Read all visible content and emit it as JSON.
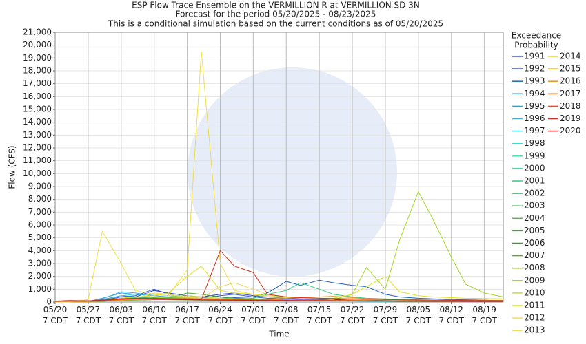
{
  "chart_data": {
    "type": "line",
    "title": "ESP Flow Trace Ensemble on the VERMILLION R at VERMILLION SD 3N",
    "subtitle": [
      "Forecast for the period 05/20/2025 - 08/23/2025",
      "This is a conditional simulation based on the current conditions as of 05/20/2025"
    ],
    "xlabel": "Time",
    "ylabel": "Flow (CFS)",
    "legend_title": [
      "Exceedance",
      "Probability"
    ],
    "legend": "right",
    "grid": true,
    "x": [
      "05/20",
      "05/23",
      "05/27",
      "05/30",
      "06/03",
      "06/06",
      "06/10",
      "06/13",
      "06/17",
      "06/20",
      "06/24",
      "06/27",
      "07/01",
      "07/04",
      "07/08",
      "07/11",
      "07/15",
      "07/18",
      "07/22",
      "07/25",
      "07/29",
      "08/01",
      "08/05",
      "08/08",
      "08/12",
      "08/15",
      "08/19",
      "08/23"
    ],
    "xlim": [
      "05/20",
      "08/23"
    ],
    "xticks": [
      {
        "value": "05/20",
        "label": "05/20 7 CDT"
      },
      {
        "value": "05/27",
        "label": "05/27 7 CDT"
      },
      {
        "value": "06/03",
        "label": "06/03 7 CDT"
      },
      {
        "value": "06/10",
        "label": "06/10 7 CDT"
      },
      {
        "value": "06/17",
        "label": "06/17 7 CDT"
      },
      {
        "value": "06/24",
        "label": "06/24 7 CDT"
      },
      {
        "value": "07/01",
        "label": "07/01 7 CDT"
      },
      {
        "value": "07/08",
        "label": "07/08 7 CDT"
      },
      {
        "value": "07/15",
        "label": "07/15 7 CDT"
      },
      {
        "value": "07/22",
        "label": "07/22 7 CDT"
      },
      {
        "value": "07/29",
        "label": "07/29 7 CDT"
      },
      {
        "value": "08/05",
        "label": "08/05 7 CDT"
      },
      {
        "value": "08/12",
        "label": "08/12 7 CDT"
      },
      {
        "value": "08/19",
        "label": "08/19 7 CDT"
      }
    ],
    "ylim": [
      0,
      21000
    ],
    "yticks": [
      0,
      {
        "value": 1000,
        "label": "1,000"
      },
      {
        "value": 2000,
        "label": "2,000"
      },
      {
        "value": 3000,
        "label": "3,000"
      },
      {
        "value": 4000,
        "label": "4,000"
      },
      {
        "value": 5000,
        "label": "5,000"
      },
      {
        "value": 6000,
        "label": "6,000"
      },
      {
        "value": 7000,
        "label": "7,000"
      },
      {
        "value": 8000,
        "label": "8,000"
      },
      {
        "value": 9000,
        "label": "9,000"
      },
      {
        "value": 10000,
        "label": "10,000"
      },
      {
        "value": 11000,
        "label": "11,000"
      },
      {
        "value": 12000,
        "label": "12,000"
      },
      {
        "value": 13000,
        "label": "13,000"
      },
      {
        "value": 14000,
        "label": "14,000"
      },
      {
        "value": 15000,
        "label": "15,000"
      },
      {
        "value": 16000,
        "label": "16,000"
      },
      {
        "value": 17000,
        "label": "17,000"
      },
      {
        "value": 18000,
        "label": "18,000"
      },
      {
        "value": 19000,
        "label": "19,000"
      },
      {
        "value": 20000,
        "label": "20,000"
      },
      {
        "value": 21000,
        "label": "21,000"
      }
    ],
    "series": [
      {
        "name": "1991",
        "color": "#3b5bdb",
        "values": [
          50,
          80,
          60,
          150,
          400,
          500,
          1000,
          600,
          400,
          300,
          500,
          600,
          400,
          300,
          250,
          200,
          200,
          180,
          150,
          120,
          100,
          100,
          100,
          90,
          150,
          120,
          100,
          80
        ]
      },
      {
        "name": "1992",
        "color": "#2f3fbf",
        "values": [
          60,
          100,
          70,
          200,
          300,
          400,
          900,
          700,
          500,
          400,
          600,
          700,
          500,
          400,
          300,
          250,
          200,
          200,
          150,
          150,
          120,
          110,
          100,
          90,
          200,
          150,
          100,
          90
        ]
      },
      {
        "name": "1993",
        "color": "#2060c0",
        "values": [
          50,
          60,
          50,
          100,
          200,
          300,
          300,
          250,
          200,
          200,
          300,
          350,
          400,
          700,
          1600,
          1300,
          1700,
          1500,
          1300,
          1200,
          600,
          400,
          300,
          250,
          200,
          180,
          150,
          120
        ]
      },
      {
        "name": "1994",
        "color": "#3080c0",
        "values": [
          40,
          50,
          60,
          200,
          500,
          400,
          300,
          250,
          200,
          150,
          150,
          150,
          120,
          100,
          100,
          90,
          90,
          80,
          80,
          70,
          70,
          60,
          60,
          60,
          60,
          50,
          50,
          50
        ]
      },
      {
        "name": "1995",
        "color": "#30a0d0",
        "values": [
          30,
          40,
          50,
          300,
          700,
          600,
          500,
          400,
          300,
          250,
          200,
          200,
          180,
          150,
          140,
          130,
          120,
          110,
          100,
          100,
          90,
          90,
          80,
          80,
          70,
          70,
          60,
          60
        ]
      },
      {
        "name": "1996",
        "color": "#40b0e0",
        "values": [
          30,
          40,
          50,
          250,
          800,
          700,
          500,
          400,
          350,
          300,
          250,
          200,
          200,
          180,
          160,
          150,
          140,
          130,
          120,
          110,
          100,
          100,
          90,
          90,
          80,
          80,
          70,
          70
        ]
      },
      {
        "name": "1997",
        "color": "#40c8e8",
        "values": [
          30,
          30,
          40,
          150,
          500,
          600,
          600,
          500,
          400,
          300,
          250,
          200,
          180,
          160,
          150,
          140,
          130,
          120,
          110,
          100,
          100,
          90,
          90,
          80,
          80,
          70,
          70,
          60
        ]
      },
      {
        "name": "1998",
        "color": "#40d8d0",
        "values": [
          40,
          50,
          50,
          100,
          200,
          250,
          200,
          180,
          150,
          140,
          130,
          120,
          110,
          100,
          100,
          90,
          90,
          80,
          80,
          70,
          70,
          70,
          60,
          60,
          60,
          60,
          50,
          50
        ]
      },
      {
        "name": "1999",
        "color": "#40e0b0",
        "values": [
          50,
          60,
          60,
          120,
          300,
          350,
          300,
          250,
          200,
          180,
          160,
          150,
          140,
          130,
          120,
          110,
          100,
          100,
          90,
          90,
          80,
          80,
          80,
          70,
          70,
          70,
          60,
          60
        ]
      },
      {
        "name": "2000",
        "color": "#30d090",
        "values": [
          30,
          40,
          40,
          80,
          150,
          200,
          250,
          200,
          180,
          160,
          140,
          130,
          120,
          110,
          100,
          100,
          90,
          90,
          80,
          80,
          70,
          70,
          70,
          60,
          60,
          60,
          50,
          50
        ]
      },
      {
        "name": "2001",
        "color": "#30c878",
        "values": [
          40,
          50,
          60,
          100,
          200,
          250,
          300,
          350,
          300,
          250,
          200,
          200,
          300,
          600,
          900,
          1500,
          1000,
          600,
          400,
          300,
          250,
          200,
          180,
          160,
          150,
          140,
          130,
          120
        ]
      },
      {
        "name": "2002",
        "color": "#30c060",
        "values": [
          30,
          40,
          50,
          90,
          180,
          220,
          250,
          300,
          350,
          300,
          250,
          220,
          200,
          180,
          160,
          150,
          140,
          130,
          120,
          110,
          100,
          100,
          90,
          90,
          80,
          80,
          70,
          70
        ]
      },
      {
        "name": "2003",
        "color": "#40b850",
        "values": [
          40,
          40,
          50,
          80,
          150,
          200,
          220,
          200,
          180,
          160,
          150,
          140,
          130,
          120,
          110,
          100,
          100,
          90,
          90,
          80,
          80,
          70,
          70,
          60,
          60,
          60,
          50,
          50
        ]
      },
      {
        "name": "2004",
        "color": "#50c040",
        "values": [
          50,
          50,
          60,
          100,
          200,
          300,
          350,
          400,
          300,
          250,
          200,
          180,
          160,
          150,
          140,
          130,
          120,
          110,
          100,
          100,
          90,
          90,
          80,
          80,
          70,
          70,
          60,
          60
        ]
      },
      {
        "name": "2005",
        "color": "#40a830",
        "values": [
          40,
          50,
          50,
          90,
          160,
          200,
          250,
          300,
          700,
          600,
          400,
          300,
          250,
          200,
          180,
          160,
          150,
          140,
          130,
          120,
          110,
          100,
          100,
          90,
          90,
          80,
          80,
          70
        ]
      },
      {
        "name": "2006",
        "color": "#30a020",
        "values": [
          30,
          30,
          40,
          70,
          120,
          150,
          180,
          200,
          220,
          200,
          180,
          160,
          150,
          140,
          130,
          120,
          110,
          100,
          100,
          90,
          90,
          80,
          80,
          70,
          70,
          60,
          60,
          60
        ]
      },
      {
        "name": "2007",
        "color": "#50b020",
        "values": [
          40,
          40,
          50,
          80,
          130,
          170,
          200,
          220,
          200,
          180,
          160,
          150,
          140,
          130,
          120,
          110,
          100,
          100,
          90,
          90,
          80,
          80,
          70,
          70,
          60,
          60,
          60,
          50
        ]
      },
      {
        "name": "2008",
        "color": "#80c820",
        "values": [
          30,
          40,
          40,
          70,
          120,
          160,
          200,
          250,
          300,
          280,
          250,
          220,
          200,
          180,
          160,
          150,
          140,
          130,
          120,
          110,
          100,
          100,
          90,
          90,
          80,
          80,
          70,
          70
        ]
      },
      {
        "name": "2009",
        "color": "#a0d820",
        "values": [
          40,
          50,
          50,
          100,
          150,
          200,
          200,
          180,
          160,
          150,
          140,
          130,
          120,
          110,
          100,
          100,
          120,
          200,
          600,
          2700,
          1000,
          4800,
          8600,
          6500,
          3500,
          1400,
          700,
          400
        ]
      },
      {
        "name": "2010",
        "color": "#c0e030",
        "values": [
          50,
          60,
          60,
          100,
          200,
          250,
          300,
          400,
          500,
          400,
          300,
          250,
          200,
          180,
          160,
          150,
          140,
          130,
          120,
          110,
          100,
          100,
          90,
          90,
          80,
          80,
          70,
          70
        ]
      },
      {
        "name": "2011",
        "color": "#e0e020",
        "values": [
          60,
          70,
          80,
          150,
          300,
          400,
          500,
          700,
          2000,
          2800,
          900,
          700,
          600,
          500,
          400,
          350,
          300,
          300,
          600,
          1200,
          2000,
          800,
          500,
          400,
          350,
          300,
          280,
          250
        ]
      },
      {
        "name": "2012",
        "color": "#f0e040",
        "values": [
          0,
          0,
          200,
          5500,
          3000,
          900,
          600,
          500,
          2500,
          19500,
          3000,
          900,
          600,
          400,
          350,
          300,
          300,
          250,
          250,
          200,
          200,
          180,
          150,
          150,
          130,
          120,
          110,
          100
        ]
      },
      {
        "name": "2013",
        "color": "#f0d860",
        "values": [
          50,
          60,
          60,
          100,
          200,
          300,
          700,
          600,
          400,
          300,
          1200,
          1500,
          1000,
          600,
          400,
          350,
          300,
          280,
          250,
          220,
          200,
          180,
          160,
          150,
          140,
          130,
          120,
          110
        ]
      },
      {
        "name": "2014",
        "color": "#e8d040",
        "values": [
          40,
          50,
          50,
          90,
          150,
          200,
          250,
          300,
          350,
          300,
          250,
          220,
          200,
          180,
          160,
          150,
          140,
          130,
          120,
          110,
          100,
          100,
          90,
          90,
          80,
          80,
          70,
          70
        ]
      },
      {
        "name": "2015",
        "color": "#e8b020",
        "values": [
          50,
          60,
          60,
          100,
          180,
          220,
          260,
          300,
          280,
          250,
          220,
          200,
          180,
          160,
          150,
          140,
          130,
          120,
          110,
          100,
          100,
          90,
          90,
          80,
          80,
          70,
          70,
          60
        ]
      },
      {
        "name": "2016",
        "color": "#e89020",
        "values": [
          40,
          50,
          50,
          80,
          150,
          200,
          220,
          240,
          220,
          200,
          180,
          160,
          150,
          200,
          300,
          350,
          400,
          450,
          350,
          250,
          200,
          180,
          160,
          150,
          140,
          130,
          120,
          110
        ]
      },
      {
        "name": "2017",
        "color": "#e07020",
        "values": [
          60,
          80,
          80,
          120,
          250,
          300,
          280,
          260,
          240,
          220,
          200,
          180,
          160,
          150,
          140,
          130,
          120,
          110,
          100,
          100,
          90,
          90,
          80,
          80,
          70,
          70,
          60,
          60
        ]
      },
      {
        "name": "2018",
        "color": "#e05030",
        "values": [
          50,
          60,
          60,
          100,
          200,
          250,
          300,
          280,
          260,
          240,
          220,
          200,
          180,
          160,
          150,
          140,
          130,
          120,
          110,
          100,
          100,
          90,
          90,
          80,
          80,
          70,
          70,
          60
        ]
      },
      {
        "name": "2019",
        "color": "#d03020",
        "values": [
          80,
          100,
          90,
          150,
          250,
          300,
          280,
          250,
          220,
          200,
          4000,
          2800,
          2300,
          600,
          400,
          350,
          300,
          280,
          250,
          220,
          200,
          180,
          160,
          150,
          140,
          130,
          120,
          110
        ]
      },
      {
        "name": "2020",
        "color": "#c02020",
        "values": [
          70,
          120,
          100,
          150,
          250,
          250,
          220,
          200,
          180,
          160,
          150,
          140,
          130,
          120,
          110,
          100,
          100,
          90,
          90,
          80,
          80,
          70,
          70,
          60,
          60,
          60,
          50,
          50
        ]
      }
    ]
  }
}
